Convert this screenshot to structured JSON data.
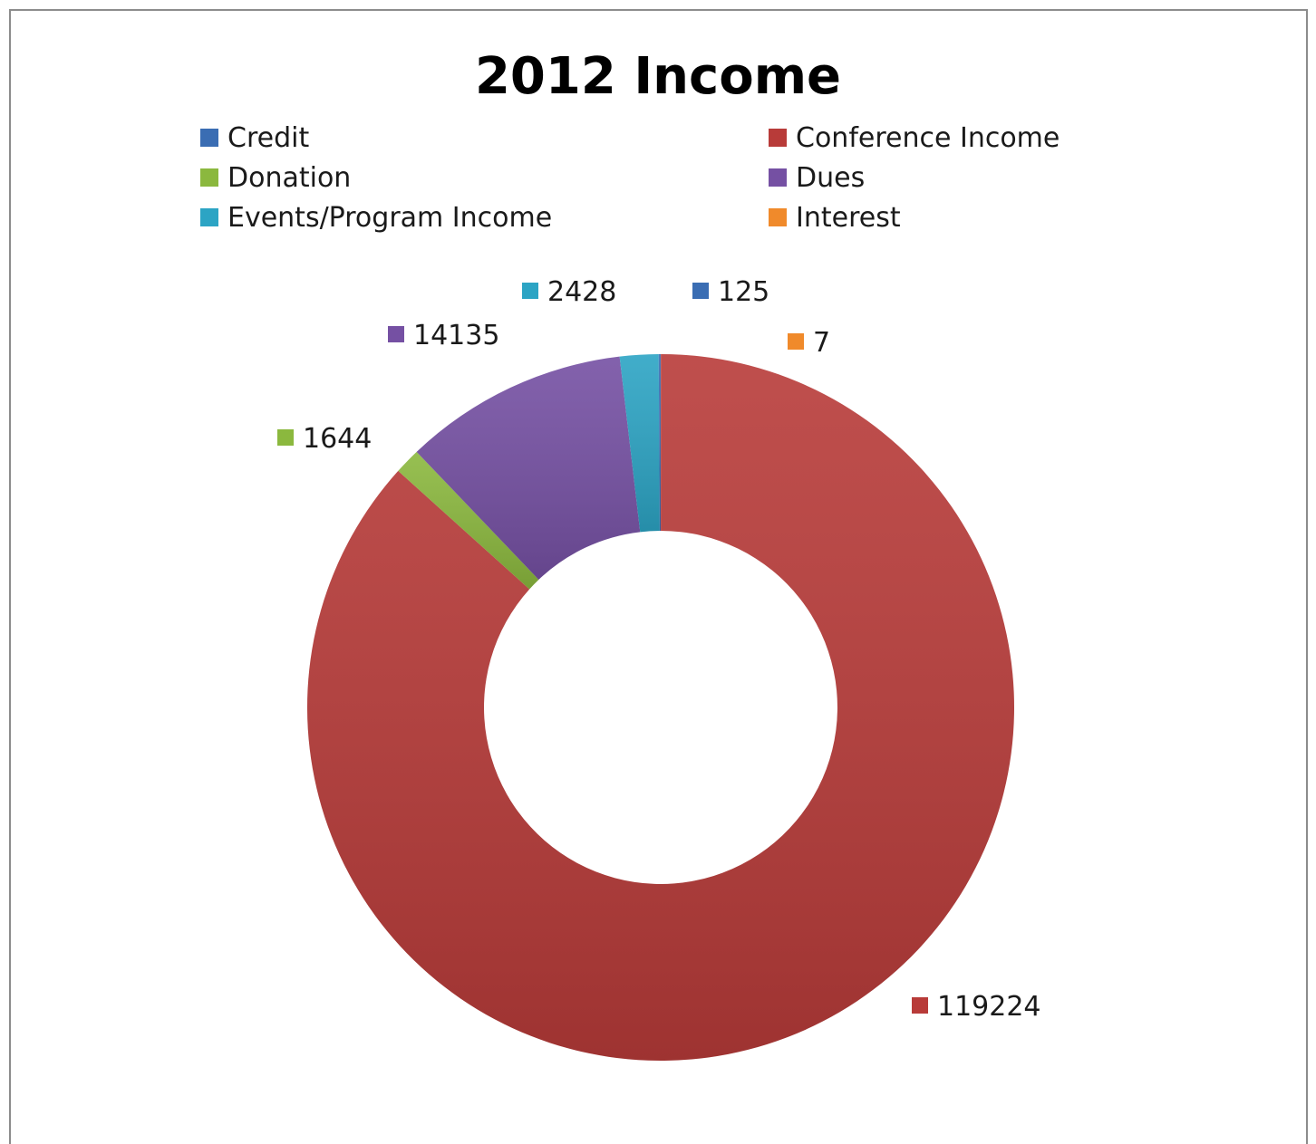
{
  "chart_data": {
    "type": "pie",
    "style": "doughnut",
    "title": "2012 Income",
    "legend_position": "top",
    "categories": [
      "Credit",
      "Conference Income",
      "Donation",
      "Dues",
      "Events/Program Income",
      "Interest"
    ],
    "values": [
      125,
      119224,
      1644,
      14135,
      2428,
      7
    ],
    "colors": [
      "#3a6db3",
      "#b83b39",
      "#8bb83e",
      "#7550a3",
      "#2ca4c4",
      "#f08a2b"
    ],
    "data_labels": [
      "125",
      "119224",
      "1644",
      "14135",
      "2428",
      "7"
    ]
  }
}
